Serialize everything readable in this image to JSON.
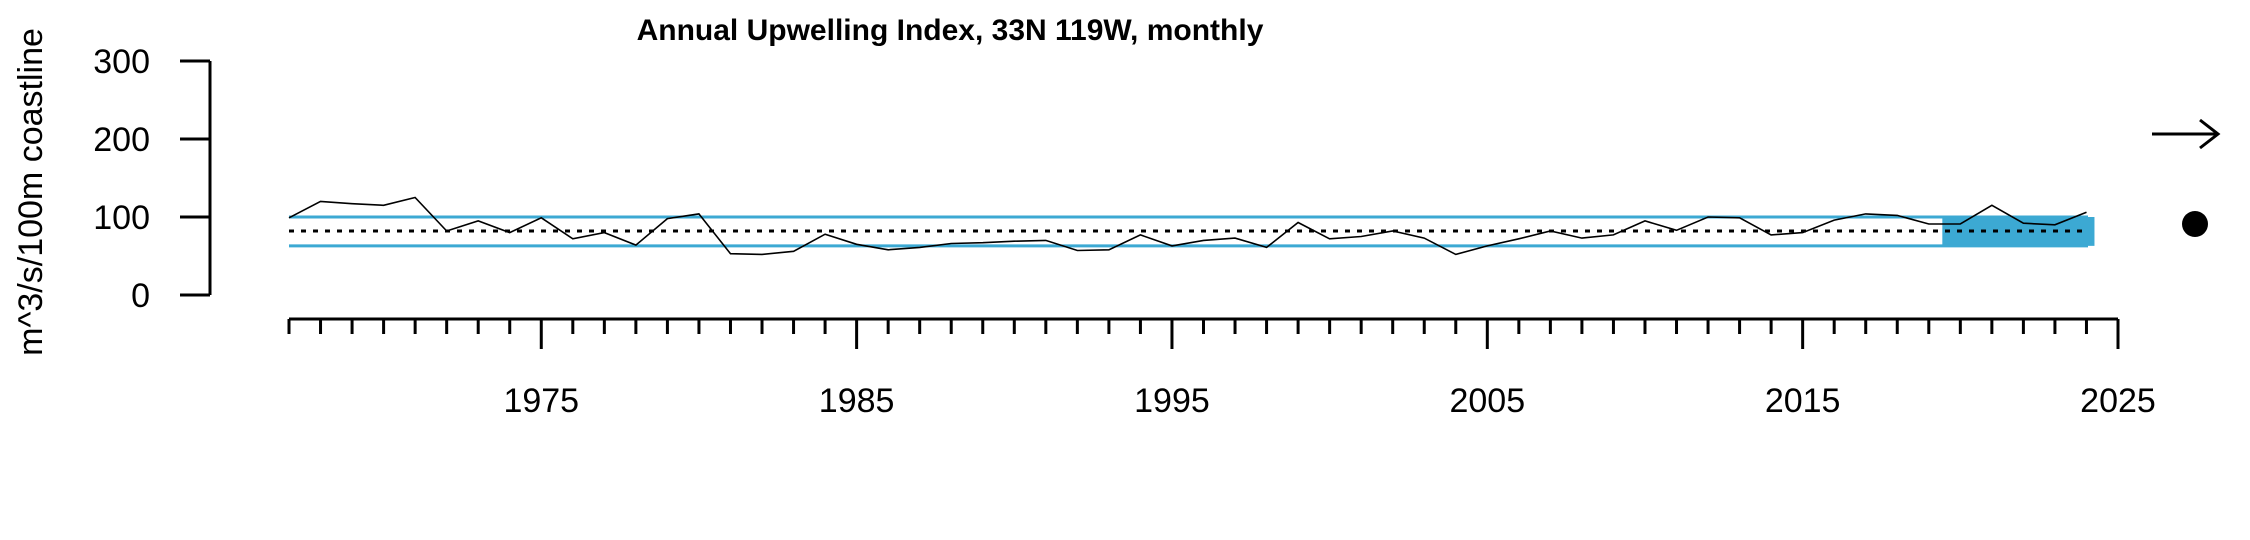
{
  "chart_data": {
    "type": "line",
    "title": "Annual Upwelling Index, 33N 119W, monthly",
    "ylabel": "m^3/s/100m coastline",
    "xlabel": "",
    "xlim": [
      1967,
      2025
    ],
    "ylim": [
      0,
      300
    ],
    "yticks": [
      0,
      100,
      200,
      300
    ],
    "xticks_labeled": [
      1975,
      1985,
      1995,
      2005,
      2015,
      2025
    ],
    "x_minor_tick_step": 1,
    "grid": false,
    "series": [
      {
        "x": [
          1967,
          1968,
          1969,
          1970,
          1971,
          1972,
          1973,
          1974,
          1975,
          1976,
          1977,
          1978,
          1979,
          1980,
          1981,
          1982,
          1983,
          1984,
          1985,
          1986,
          1987,
          1988,
          1989,
          1990,
          1991,
          1992,
          1993,
          1994,
          1995,
          1996,
          1997,
          1998,
          1999,
          2000,
          2001,
          2002,
          2003,
          2004,
          2005,
          2006,
          2007,
          2008,
          2009,
          2010,
          2011,
          2012,
          2013,
          2014,
          2015,
          2016,
          2017,
          2018,
          2019,
          2020,
          2021,
          2022,
          2023,
          2024
        ],
        "values": [
          99,
          120,
          117,
          115,
          125,
          82,
          95,
          80,
          99,
          72,
          80,
          64,
          98,
          104,
          53,
          52,
          56,
          78,
          65,
          58,
          61,
          66,
          67,
          69,
          70,
          57,
          58,
          77,
          63,
          70,
          73,
          61,
          93,
          72,
          75,
          82,
          73,
          52,
          63,
          72,
          82,
          73,
          77,
          95,
          83,
          100,
          99,
          77,
          80,
          96,
          104,
          102,
          91,
          91,
          115,
          92,
          90,
          106
        ],
        "color": "#000000"
      }
    ],
    "reference_lines": {
      "mean": 82,
      "upper": 100,
      "lower": 63,
      "band_color": "#3ca9d3",
      "mean_style": "dotted"
    },
    "highlight": {
      "x_start": 2020,
      "x_end": 2024,
      "color": "#3ca9d3"
    },
    "trend_indicator": {
      "trend_icon": "right-arrow-icon",
      "mean_icon": "filled-circle-icon"
    }
  }
}
